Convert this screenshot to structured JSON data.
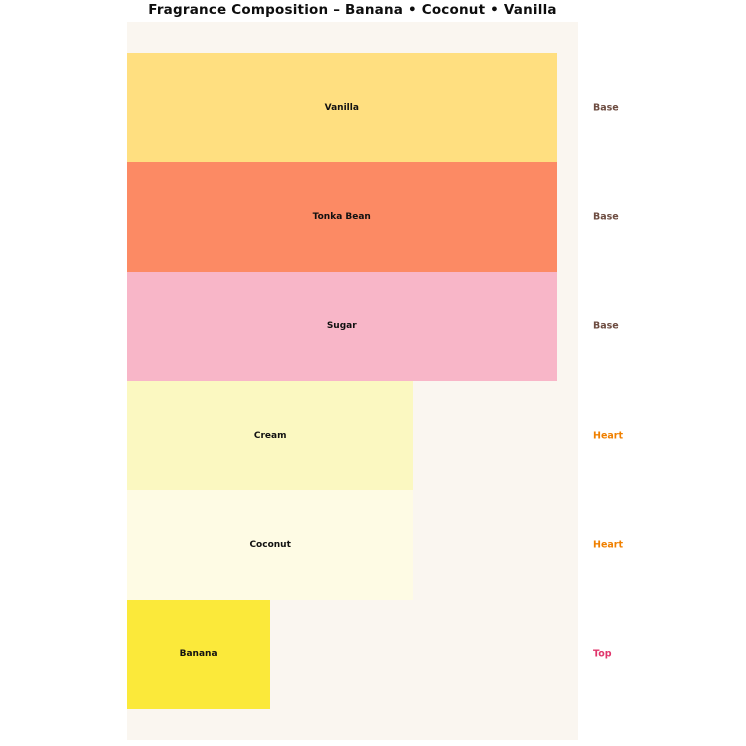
{
  "title": "Fragrance Composition – Banana • Coconut • Vanilla",
  "chart_data": {
    "type": "bar",
    "orientation": "horizontal",
    "title": "Fragrance Composition – Banana • Coconut • Vanilla",
    "categories": [
      "Vanilla",
      "Tonka Bean",
      "Sugar",
      "Cream",
      "Coconut",
      "Banana"
    ],
    "values": [
      3,
      3,
      3,
      2,
      2,
      1
    ],
    "bar_colors": [
      "#ffdf80",
      "#fc8a64",
      "#f8b6c8",
      "#fbf8c1",
      "#fefbe4",
      "#fbe93a"
    ],
    "note_labels": [
      "Base",
      "Base",
      "Base",
      "Heart",
      "Heart",
      "Top"
    ],
    "note_colors": {
      "Base": "#6d4c41",
      "Heart": "#f08000",
      "Top": "#e0356b"
    },
    "xlabel": "",
    "ylabel": "",
    "xlim": [
      0,
      3.15
    ],
    "grid": false,
    "axes_visible": false,
    "legend": "none",
    "plot_background": "#faf6f0"
  }
}
